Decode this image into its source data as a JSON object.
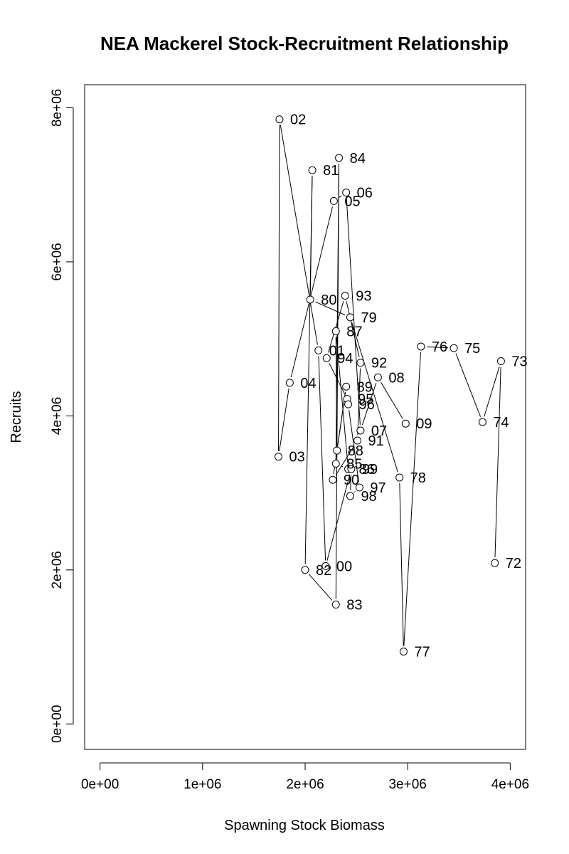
{
  "chart_data": {
    "type": "scatter",
    "title": "NEA Mackerel Stock-Recruitment Relationship",
    "xlabel": "Spawning Stock Biomass",
    "ylabel": "Recruits",
    "xlim": [
      -150000,
      4150000
    ],
    "ylim": [
      -330000,
      8300000
    ],
    "xticks": [
      0,
      1000000,
      2000000,
      3000000,
      4000000
    ],
    "xtick_labels": [
      "0e+00",
      "1e+06",
      "2e+06",
      "3e+06",
      "4e+06"
    ],
    "yticks": [
      0,
      2000000,
      4000000,
      6000000,
      8000000
    ],
    "ytick_labels": [
      "0e+00",
      "2e+06",
      "4e+06",
      "6e+06",
      "8e+06"
    ],
    "connected": true,
    "point_labels_position": "right",
    "points": [
      {
        "label": "72",
        "x": 3850000,
        "y": 2090000
      },
      {
        "label": "73",
        "x": 3910000,
        "y": 4710000
      },
      {
        "label": "74",
        "x": 3730000,
        "y": 3920000
      },
      {
        "label": "75",
        "x": 3450000,
        "y": 4880000
      },
      {
        "label": "76",
        "x": 3130000,
        "y": 4900000
      },
      {
        "label": "77",
        "x": 2960000,
        "y": 940000
      },
      {
        "label": "78",
        "x": 2920000,
        "y": 3200000
      },
      {
        "label": "79",
        "x": 2440000,
        "y": 5280000
      },
      {
        "label": "80",
        "x": 2050000,
        "y": 5510000
      },
      {
        "label": "81",
        "x": 2070000,
        "y": 7190000
      },
      {
        "label": "82",
        "x": 2000000,
        "y": 2000000
      },
      {
        "label": "83",
        "x": 2300000,
        "y": 1550000
      },
      {
        "label": "84",
        "x": 2330000,
        "y": 7350000
      },
      {
        "label": "85",
        "x": 2300000,
        "y": 3380000
      },
      {
        "label": "86",
        "x": 2420000,
        "y": 3310000
      },
      {
        "label": "87",
        "x": 2300000,
        "y": 5100000
      },
      {
        "label": "88",
        "x": 2310000,
        "y": 3550000
      },
      {
        "label": "89",
        "x": 2400000,
        "y": 4380000
      },
      {
        "label": "90",
        "x": 2270000,
        "y": 3170000
      },
      {
        "label": "91",
        "x": 2510000,
        "y": 3680000
      },
      {
        "label": "92",
        "x": 2540000,
        "y": 4690000
      },
      {
        "label": "93",
        "x": 2390000,
        "y": 5560000
      },
      {
        "label": "94",
        "x": 2210000,
        "y": 4750000
      },
      {
        "label": "95",
        "x": 2410000,
        "y": 4220000
      },
      {
        "label": "96",
        "x": 2420000,
        "y": 4150000
      },
      {
        "label": "97",
        "x": 2530000,
        "y": 3070000
      },
      {
        "label": "98",
        "x": 2440000,
        "y": 2960000
      },
      {
        "label": "99",
        "x": 2450000,
        "y": 3310000
      },
      {
        "label": "00",
        "x": 2200000,
        "y": 2050000
      },
      {
        "label": "01",
        "x": 2130000,
        "y": 4850000
      },
      {
        "label": "02",
        "x": 1750000,
        "y": 7850000
      },
      {
        "label": "03",
        "x": 1740000,
        "y": 3470000
      },
      {
        "label": "04",
        "x": 1850000,
        "y": 4430000
      },
      {
        "label": "05",
        "x": 2280000,
        "y": 6790000
      },
      {
        "label": "06",
        "x": 2400000,
        "y": 6900000
      },
      {
        "label": "07",
        "x": 2540000,
        "y": 3810000
      },
      {
        "label": "08",
        "x": 2710000,
        "y": 4500000
      },
      {
        "label": "09",
        "x": 2980000,
        "y": 3900000
      }
    ]
  }
}
